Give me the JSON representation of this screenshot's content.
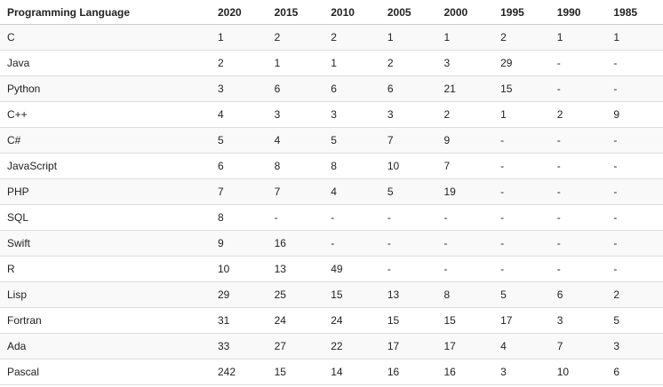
{
  "table": {
    "header": [
      "Programming Language",
      "2020",
      "2015",
      "2010",
      "2005",
      "2000",
      "1995",
      "1990",
      "1985"
    ],
    "rows": [
      [
        "C",
        "1",
        "2",
        "2",
        "1",
        "1",
        "2",
        "1",
        "1"
      ],
      [
        "Java",
        "2",
        "1",
        "1",
        "2",
        "3",
        "29",
        "-",
        "-"
      ],
      [
        "Python",
        "3",
        "6",
        "6",
        "6",
        "21",
        "15",
        "-",
        "-"
      ],
      [
        "C++",
        "4",
        "3",
        "3",
        "3",
        "2",
        "1",
        "2",
        "9"
      ],
      [
        "C#",
        "5",
        "4",
        "5",
        "7",
        "9",
        "-",
        "-",
        "-"
      ],
      [
        "JavaScript",
        "6",
        "8",
        "8",
        "10",
        "7",
        "-",
        "-",
        "-"
      ],
      [
        "PHP",
        "7",
        "7",
        "4",
        "5",
        "19",
        "-",
        "-",
        "-"
      ],
      [
        "SQL",
        "8",
        "-",
        "-",
        "-",
        "-",
        "-",
        "-",
        "-"
      ],
      [
        "Swift",
        "9",
        "16",
        "-",
        "-",
        "-",
        "-",
        "-",
        "-"
      ],
      [
        "R",
        "10",
        "13",
        "49",
        "-",
        "-",
        "-",
        "-",
        "-"
      ],
      [
        "Lisp",
        "29",
        "25",
        "15",
        "13",
        "8",
        "5",
        "6",
        "2"
      ],
      [
        "Fortran",
        "31",
        "24",
        "24",
        "15",
        "15",
        "17",
        "3",
        "5"
      ],
      [
        "Ada",
        "33",
        "27",
        "22",
        "17",
        "17",
        "4",
        "7",
        "3"
      ],
      [
        "Pascal",
        "242",
        "15",
        "14",
        "16",
        "16",
        "3",
        "10",
        "6"
      ]
    ]
  }
}
